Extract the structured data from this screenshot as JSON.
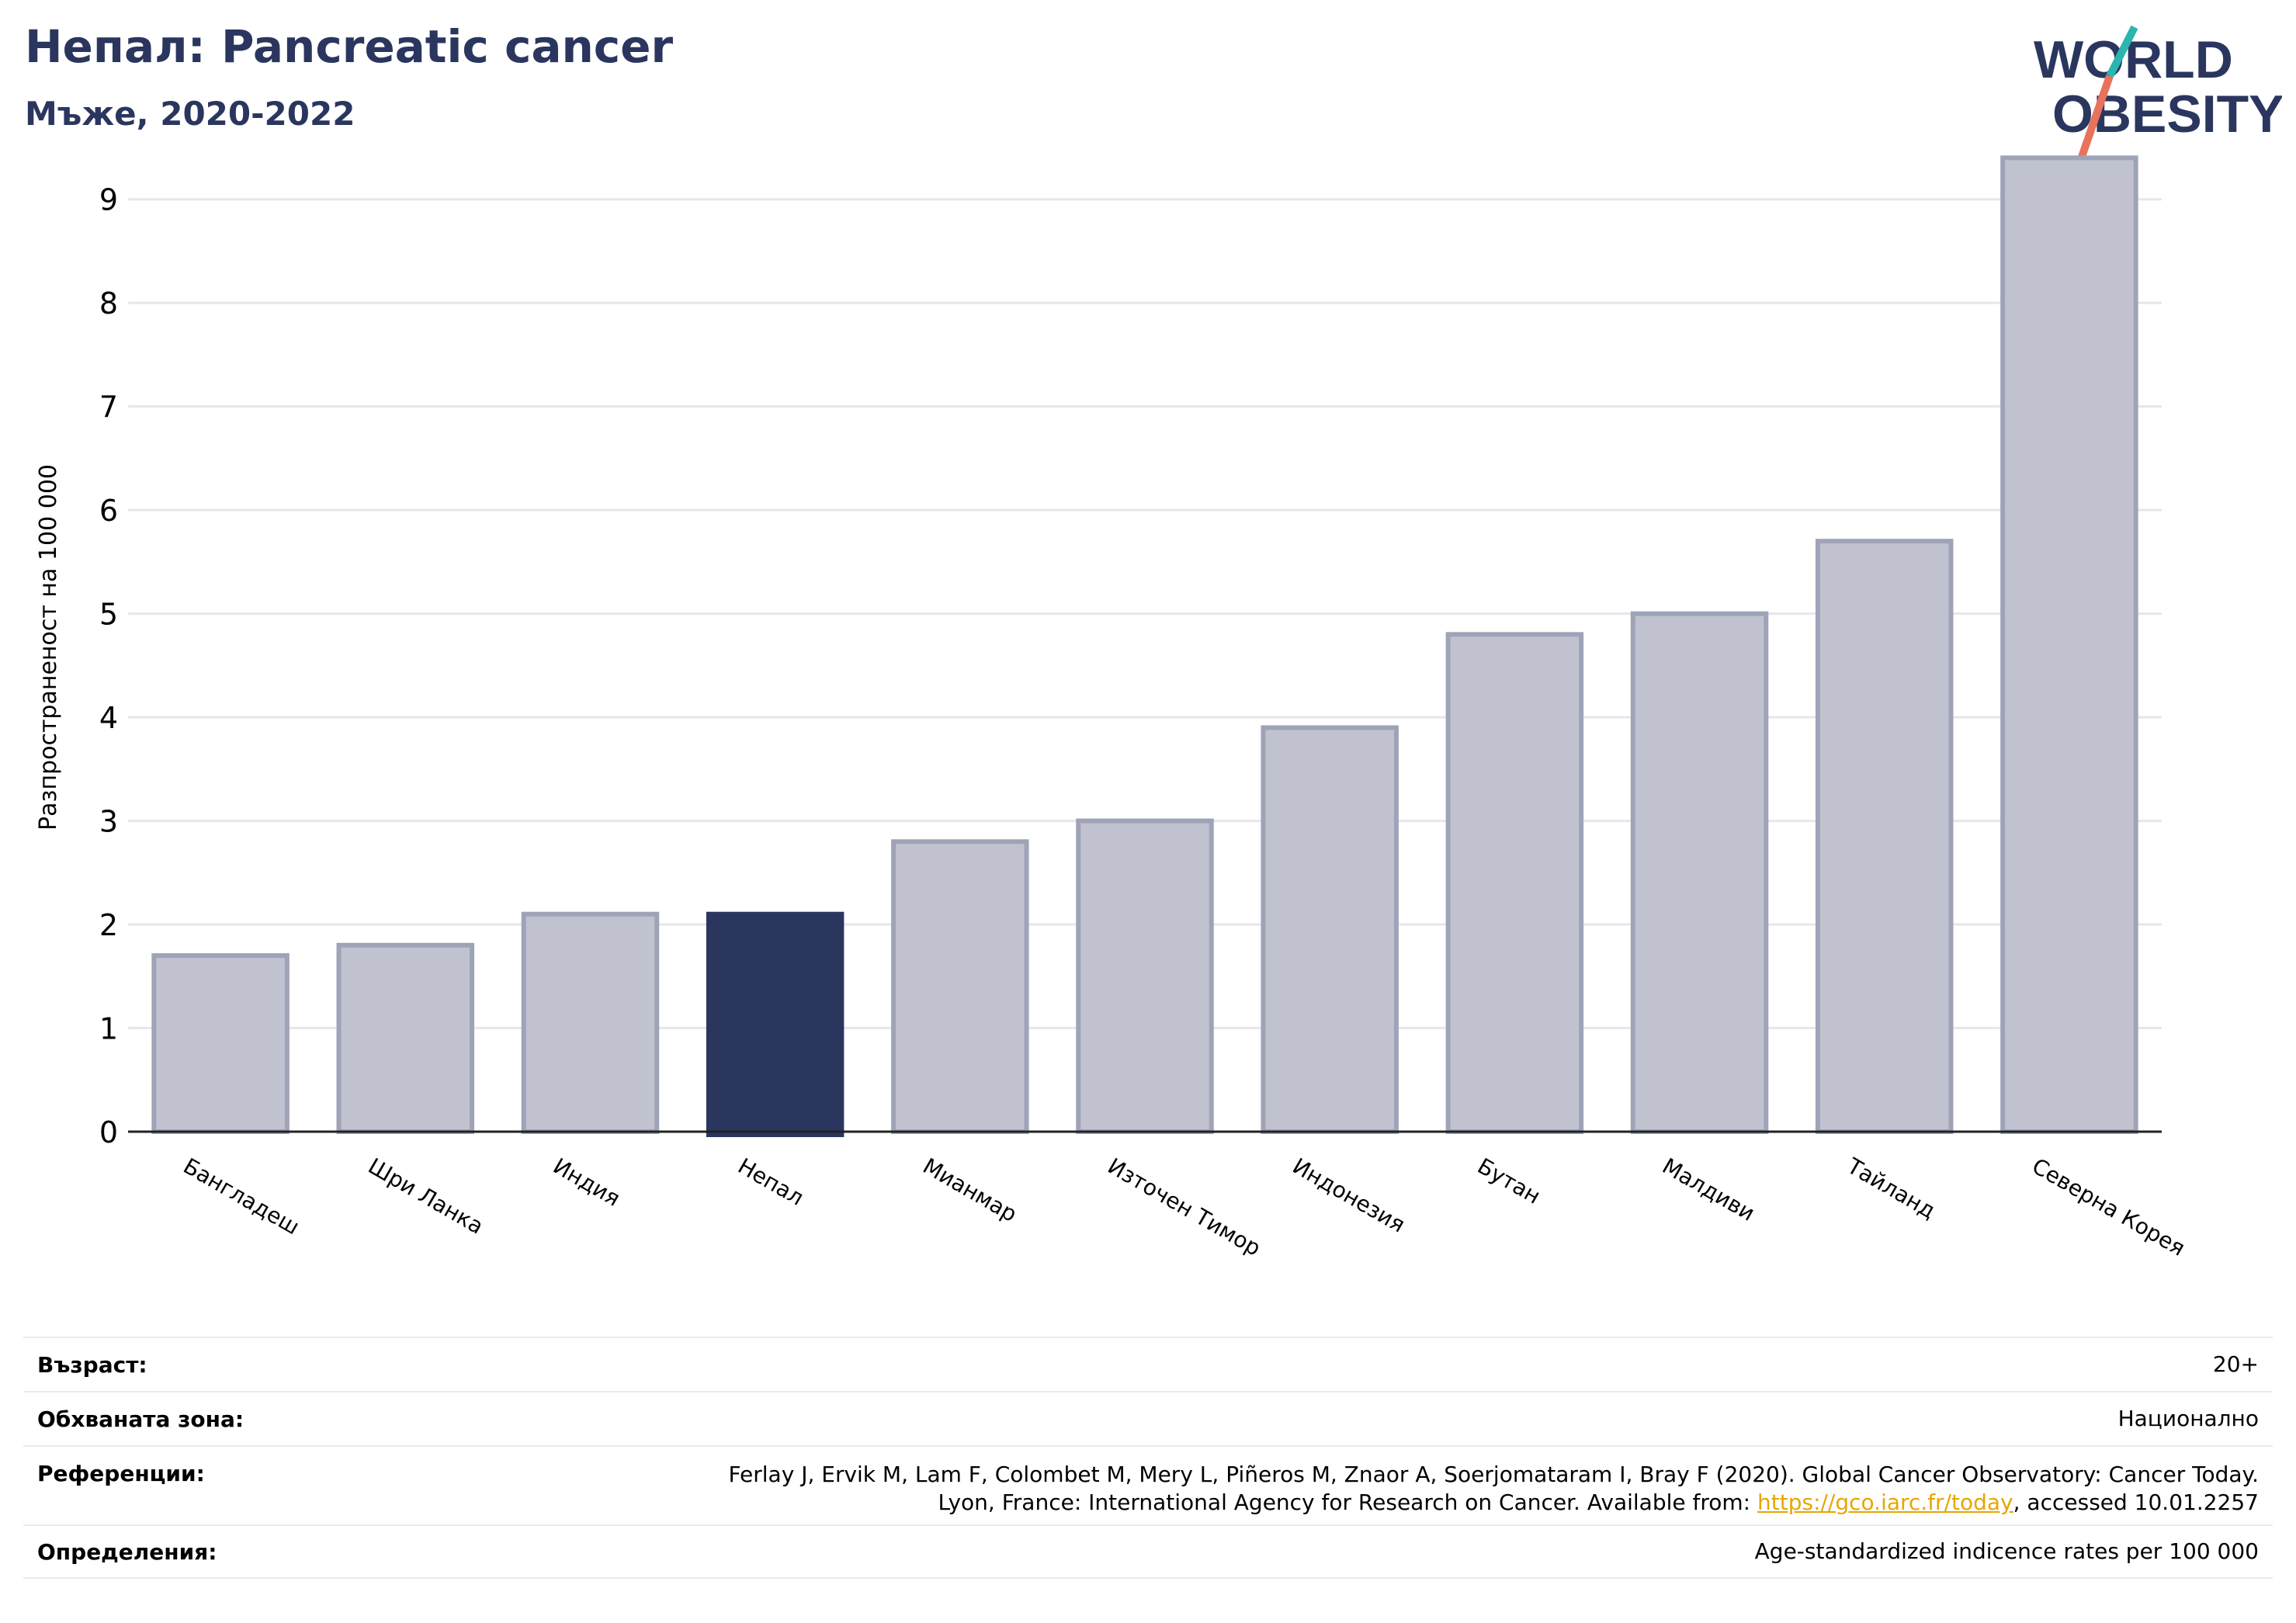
{
  "header": {
    "title": "Непал: Pancreatic cancer",
    "subtitle": "Мъже, 2020-2022"
  },
  "logo": {
    "line1": "WORLD",
    "line2": "OBESITY",
    "colors": {
      "text": "#2b365f",
      "slash_top": "#2bb5b0",
      "slash_bottom": "#e8725c"
    }
  },
  "chart_data": {
    "type": "bar",
    "categories": [
      "Бангладеш",
      "Шри Ланка",
      "Индия",
      "Непал",
      "Мианмар",
      "Източен Тимор",
      "Индонезия",
      "Бутан",
      "Малдиви",
      "Тайланд",
      "Северна Корея"
    ],
    "values": [
      1.7,
      1.8,
      2.1,
      2.1,
      2.8,
      3.0,
      3.9,
      4.8,
      5.0,
      5.7,
      9.4
    ],
    "highlight": "Непал",
    "ylabel": "Разпространеност  на 100 000",
    "xlabel": "",
    "ylim": [
      0,
      9.5
    ],
    "yticks": [
      0,
      1,
      2,
      3,
      4,
      5,
      6,
      7,
      8,
      9
    ],
    "grid": true,
    "colors": {
      "bar": "#c0c3cf",
      "bar_edge": "#9ea3b8",
      "highlight": "#2b365f"
    }
  },
  "info": {
    "rows": [
      {
        "label": "Възраст:",
        "value": "20+"
      },
      {
        "label": "Обхваната зона:",
        "value": "Национално"
      },
      {
        "label": "Референции:",
        "value_line1": "Ferlay J, Ervik M, Lam F, Colombet M, Mery L, Piñeros M, Znaor A, Soerjomataram I, Bray F (2020). Global Cancer Observatory: Cancer Today.",
        "value_line2_pre": "Lyon, France: International Agency for Research on Cancer. Available from: ",
        "link": "https://gco.iarc.fr/today",
        "value_line2_post": ", accessed 10.01.2257"
      },
      {
        "label": "Определения:",
        "value": "Age-standardized indicence rates per 100 000"
      }
    ]
  }
}
